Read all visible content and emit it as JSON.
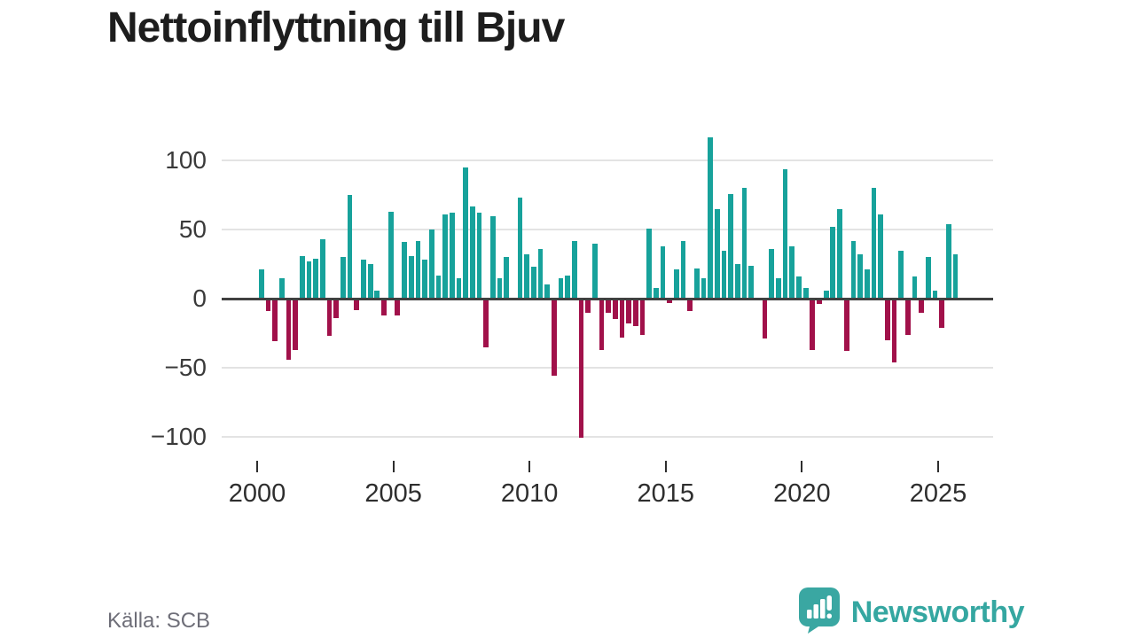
{
  "title": "Nettoinflyttning till Bjuv",
  "source": "Källa: SCB",
  "branding": {
    "name": "Newsworthy",
    "logo_icon": "speech-bubble-bar-chart-exclamation",
    "color": "#35a7a1"
  },
  "colors": {
    "positive_bar": "#17a29b",
    "negative_bar": "#a1114a",
    "zero_line": "#404040",
    "gridline": "#e3e3e3",
    "title_text": "#1d1d1d",
    "axis_text": "#3a3a3a",
    "source_text": "#6e6e78",
    "background": "#ffffff"
  },
  "chart_data": {
    "type": "bar",
    "title": "Nettoinflyttning till Bjuv",
    "xlabel": "",
    "ylabel": "",
    "x_unit": "quarter",
    "ylim": [
      -110,
      125
    ],
    "grid": "horizontal",
    "legend": "none",
    "y_tick_values": [
      100,
      50,
      0,
      -50,
      -100
    ],
    "y_tick_labels": [
      "100",
      "50",
      "0",
      "−50",
      "−100"
    ],
    "x_tick_labels": [
      "2000",
      "2005",
      "2010",
      "2015",
      "2020",
      "2025"
    ],
    "series": [
      {
        "name": "Nettoinflyttning",
        "points": [
          [
            "2000Q1",
            21
          ],
          [
            "2000Q2",
            -9
          ],
          [
            "2000Q3",
            -31
          ],
          [
            "2000Q4",
            15
          ],
          [
            "2001Q1",
            -44
          ],
          [
            "2001Q2",
            -37
          ],
          [
            "2001Q3",
            31
          ],
          [
            "2001Q4",
            27
          ],
          [
            "2002Q1",
            29
          ],
          [
            "2002Q2",
            43
          ],
          [
            "2002Q3",
            -27
          ],
          [
            "2002Q4",
            -14
          ],
          [
            "2003Q1",
            30
          ],
          [
            "2003Q2",
            75
          ],
          [
            "2003Q3",
            -8
          ],
          [
            "2003Q4",
            28
          ],
          [
            "2004Q1",
            25
          ],
          [
            "2004Q2",
            6
          ],
          [
            "2004Q3",
            -12
          ],
          [
            "2004Q4",
            63
          ],
          [
            "2005Q1",
            -12
          ],
          [
            "2005Q2",
            41
          ],
          [
            "2005Q3",
            31
          ],
          [
            "2005Q4",
            42
          ],
          [
            "2006Q1",
            28
          ],
          [
            "2006Q2",
            50
          ],
          [
            "2006Q3",
            17
          ],
          [
            "2006Q4",
            61
          ],
          [
            "2007Q1",
            62
          ],
          [
            "2007Q2",
            15
          ],
          [
            "2007Q3",
            95
          ],
          [
            "2007Q4",
            67
          ],
          [
            "2008Q1",
            62
          ],
          [
            "2008Q2",
            -35
          ],
          [
            "2008Q3",
            60
          ],
          [
            "2008Q4",
            15
          ],
          [
            "2009Q1",
            30
          ],
          [
            "2009Q2",
            0
          ],
          [
            "2009Q3",
            73
          ],
          [
            "2009Q4",
            32
          ],
          [
            "2010Q1",
            23
          ],
          [
            "2010Q2",
            36
          ],
          [
            "2010Q3",
            10
          ],
          [
            "2010Q4",
            -56
          ],
          [
            "2011Q1",
            15
          ],
          [
            "2011Q2",
            17
          ],
          [
            "2011Q3",
            42
          ],
          [
            "2011Q4",
            -101
          ],
          [
            "2012Q1",
            -10
          ],
          [
            "2012Q2",
            40
          ],
          [
            "2012Q3",
            -37
          ],
          [
            "2012Q4",
            -10
          ],
          [
            "2013Q1",
            -15
          ],
          [
            "2013Q2",
            -28
          ],
          [
            "2013Q3",
            -18
          ],
          [
            "2013Q4",
            -20
          ],
          [
            "2014Q1",
            -26
          ],
          [
            "2014Q2",
            51
          ],
          [
            "2014Q3",
            8
          ],
          [
            "2014Q4",
            38
          ],
          [
            "2015Q1",
            -3
          ],
          [
            "2015Q2",
            21
          ],
          [
            "2015Q3",
            42
          ],
          [
            "2015Q4",
            -9
          ],
          [
            "2016Q1",
            22
          ],
          [
            "2016Q2",
            15
          ],
          [
            "2016Q3",
            117
          ],
          [
            "2016Q4",
            65
          ],
          [
            "2017Q1",
            35
          ],
          [
            "2017Q2",
            76
          ],
          [
            "2017Q3",
            25
          ],
          [
            "2017Q4",
            80
          ],
          [
            "2018Q1",
            24
          ],
          [
            "2018Q2",
            0
          ],
          [
            "2018Q3",
            -29
          ],
          [
            "2018Q4",
            36
          ],
          [
            "2019Q1",
            15
          ],
          [
            "2019Q2",
            94
          ],
          [
            "2019Q3",
            38
          ],
          [
            "2019Q4",
            16
          ],
          [
            "2020Q1",
            8
          ],
          [
            "2020Q2",
            -37
          ],
          [
            "2020Q3",
            -4
          ],
          [
            "2020Q4",
            6
          ],
          [
            "2021Q1",
            52
          ],
          [
            "2021Q2",
            65
          ],
          [
            "2021Q3",
            -38
          ],
          [
            "2021Q4",
            42
          ],
          [
            "2022Q1",
            32
          ],
          [
            "2022Q2",
            21
          ],
          [
            "2022Q3",
            80
          ],
          [
            "2022Q4",
            61
          ],
          [
            "2023Q1",
            -30
          ],
          [
            "2023Q2",
            -46
          ],
          [
            "2023Q3",
            35
          ],
          [
            "2023Q4",
            -26
          ],
          [
            "2024Q1",
            16
          ],
          [
            "2024Q2",
            -10
          ],
          [
            "2024Q3",
            30
          ],
          [
            "2024Q4",
            6
          ],
          [
            "2025Q1",
            -21
          ],
          [
            "2025Q2",
            54
          ],
          [
            "2025Q3",
            32
          ]
        ]
      }
    ]
  }
}
